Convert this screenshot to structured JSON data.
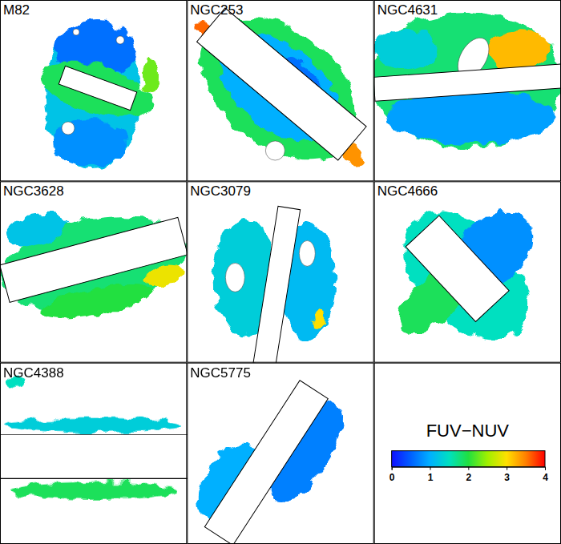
{
  "chart_data": {
    "type": "heatmap",
    "panels": [
      {
        "title": "M82",
        "regions": [
          1.2,
          0.6,
          0.8,
          1.9,
          2.3
        ]
      },
      {
        "title": "NGC253",
        "regions": [
          1.9,
          1.0,
          0.6,
          3.6,
          3.4
        ]
      },
      {
        "title": "NGC4631",
        "regions": [
          1.8,
          0.9,
          3.2,
          1.3
        ]
      },
      {
        "title": "NGC3628",
        "regions": [
          1.8,
          1.2,
          2.9,
          2.0
        ]
      },
      {
        "title": "NGC3079",
        "regions": [
          1.3,
          1.1,
          3.0
        ]
      },
      {
        "title": "NGC4666",
        "regions": [
          1.5,
          0.8,
          1.9
        ]
      },
      {
        "title": "NGC4388",
        "regions": [
          1.3,
          1.9,
          1.5
        ]
      },
      {
        "title": "NGC5775",
        "regions": [
          1.0,
          0.7
        ]
      }
    ],
    "colorbar": {
      "label": "FUV−NUV",
      "range": [
        0,
        4
      ],
      "ticks": [
        0,
        1,
        2,
        3,
        4
      ]
    }
  }
}
